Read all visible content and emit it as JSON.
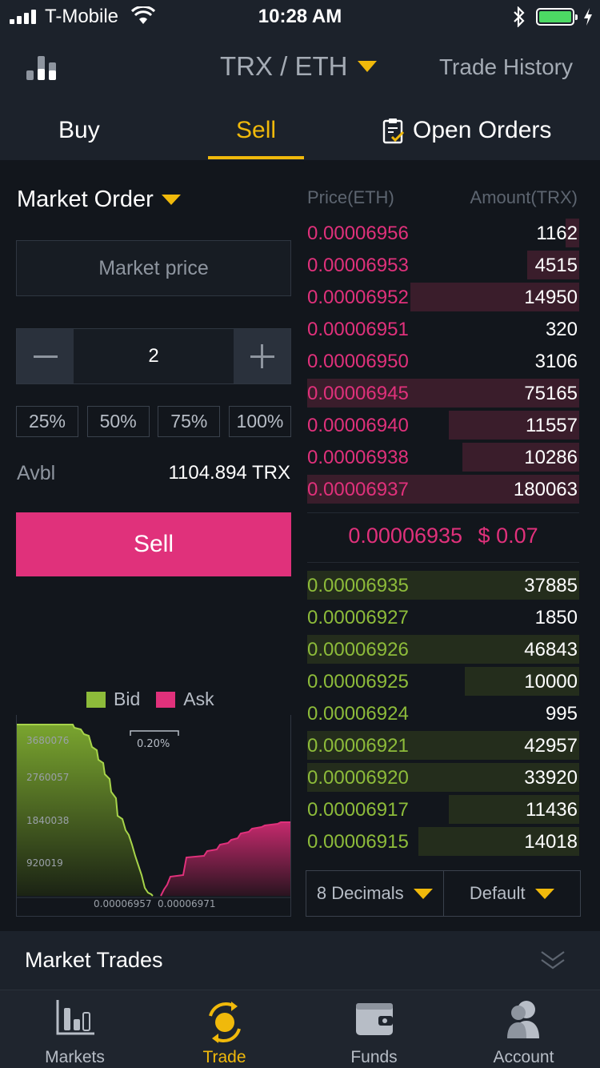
{
  "status_bar": {
    "carrier": "T-Mobile",
    "time": "10:28 AM"
  },
  "header": {
    "pair": "TRX / ETH",
    "trade_history": "Trade History"
  },
  "tabs": {
    "buy": "Buy",
    "sell": "Sell",
    "open_orders": "Open Orders",
    "active": "Sell"
  },
  "order_form": {
    "order_type": "Market Order",
    "price_placeholder": "Market price",
    "amount": "2",
    "percent_options": [
      "25%",
      "50%",
      "75%",
      "100%"
    ],
    "avbl_label": "Avbl",
    "avbl_value": "1104.894 TRX",
    "submit_label": "Sell"
  },
  "depth_chart": {
    "legend": {
      "bid": "Bid",
      "ask": "Ask"
    },
    "spread_label": "0.20%",
    "y_ticks": [
      "3680076",
      "2760057",
      "1840038",
      "920019"
    ],
    "x_ticks": [
      "0.00006957",
      "0.00006971"
    ]
  },
  "order_book": {
    "price_header": "Price(ETH)",
    "amount_header": "Amount(TRX)",
    "asks": [
      {
        "price": "0.00006956",
        "amount": "1162",
        "depth": 0.05
      },
      {
        "price": "0.00006953",
        "amount": "4515",
        "depth": 0.19
      },
      {
        "price": "0.00006952",
        "amount": "14950",
        "depth": 0.62
      },
      {
        "price": "0.00006951",
        "amount": "320",
        "depth": 0.0
      },
      {
        "price": "0.00006950",
        "amount": "3106",
        "depth": 0.0
      },
      {
        "price": "0.00006945",
        "amount": "75165",
        "depth": 1.0
      },
      {
        "price": "0.00006940",
        "amount": "11557",
        "depth": 0.48
      },
      {
        "price": "0.00006938",
        "amount": "10286",
        "depth": 0.43
      },
      {
        "price": "0.00006937",
        "amount": "180063",
        "depth": 1.0
      }
    ],
    "last_price": "0.00006935",
    "last_price_usd": "$ 0.07",
    "bids": [
      {
        "price": "0.00006935",
        "amount": "37885",
        "depth": 1.0
      },
      {
        "price": "0.00006927",
        "amount": "1850",
        "depth": 0.0
      },
      {
        "price": "0.00006926",
        "amount": "46843",
        "depth": 1.0
      },
      {
        "price": "0.00006925",
        "amount": "10000",
        "depth": 0.42
      },
      {
        "price": "0.00006924",
        "amount": "995",
        "depth": 0.0
      },
      {
        "price": "0.00006921",
        "amount": "42957",
        "depth": 1.0
      },
      {
        "price": "0.00006920",
        "amount": "33920",
        "depth": 1.0
      },
      {
        "price": "0.00006917",
        "amount": "11436",
        "depth": 0.48
      },
      {
        "price": "0.00006915",
        "amount": "14018",
        "depth": 0.59
      }
    ],
    "decimals": "8 Decimals",
    "view_mode": "Default"
  },
  "market_trades": {
    "label": "Market Trades"
  },
  "bottom_nav": {
    "items": [
      "Markets",
      "Trade",
      "Funds",
      "Account"
    ],
    "active": "Trade"
  },
  "colors": {
    "accent": "#f0b90b",
    "sell": "#e0317b",
    "buy": "#8dbb3a",
    "background": "#12161c"
  }
}
